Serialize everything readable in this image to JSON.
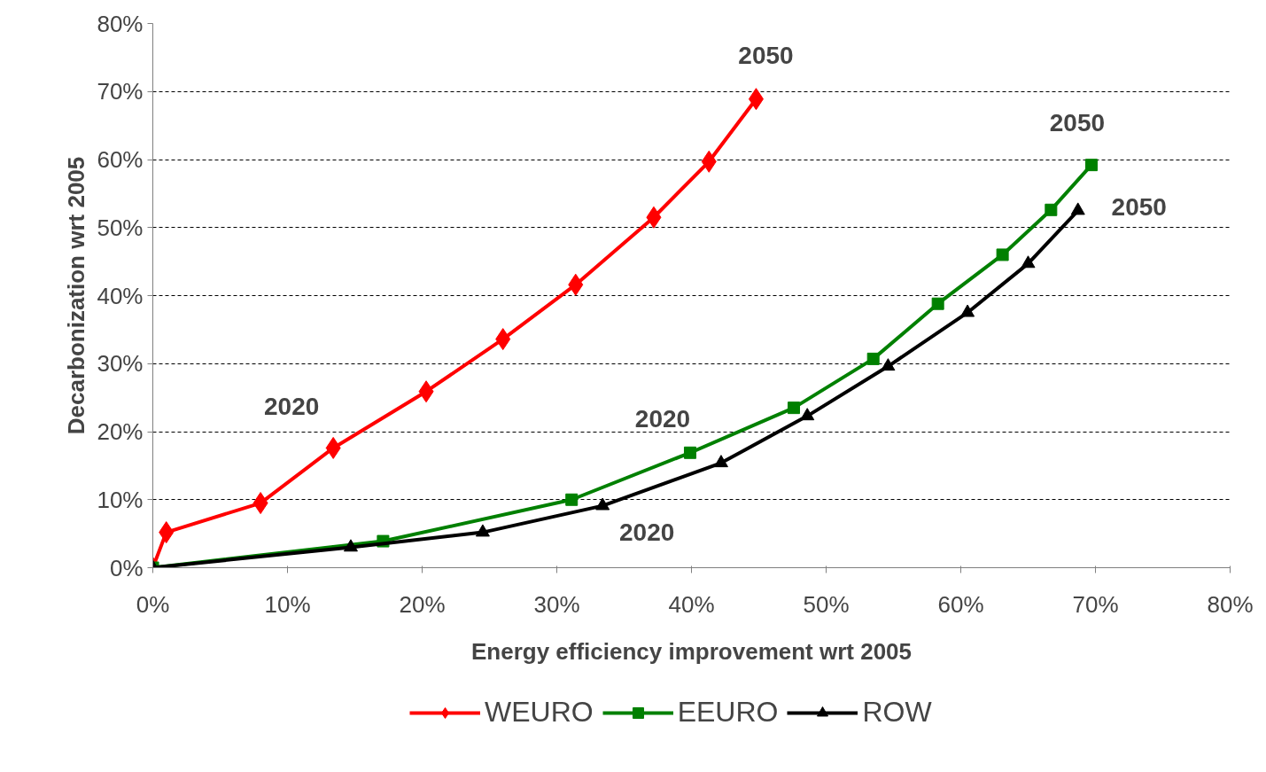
{
  "chart_data": {
    "type": "line",
    "xlabel": "Energy efficiency improvement wrt 2005",
    "ylabel": "Decarbonization wrt 2005",
    "xlim": [
      0,
      80
    ],
    "ylim": [
      0,
      80
    ],
    "xticks": [
      {
        "value": 0,
        "label": "0%"
      },
      {
        "value": 10,
        "label": "10%"
      },
      {
        "value": 20,
        "label": "20%"
      },
      {
        "value": 30,
        "label": "30%"
      },
      {
        "value": 40,
        "label": "40%"
      },
      {
        "value": 50,
        "label": "50%"
      },
      {
        "value": 60,
        "label": "60%"
      },
      {
        "value": 70,
        "label": "70%"
      },
      {
        "value": 80,
        "label": "80%"
      }
    ],
    "yticks": [
      {
        "value": 0,
        "label": "0%"
      },
      {
        "value": 10,
        "label": "10%"
      },
      {
        "value": 20,
        "label": "20%"
      },
      {
        "value": 30,
        "label": "30%"
      },
      {
        "value": 40,
        "label": "40%"
      },
      {
        "value": 50,
        "label": "50%"
      },
      {
        "value": 60,
        "label": "60%"
      },
      {
        "value": 70,
        "label": "70%"
      },
      {
        "value": 80,
        "label": "80%"
      }
    ],
    "grid": "y",
    "legend": "bottom",
    "series": [
      {
        "name": "WEURO",
        "color": "#ff0000",
        "marker": "diamond",
        "x": [
          0,
          1.0,
          8.0,
          13.4,
          20.3,
          26.0,
          31.4,
          37.2,
          41.3,
          44.8
        ],
        "values": [
          0,
          5.2,
          9.5,
          17.6,
          25.9,
          33.6,
          41.6,
          51.5,
          59.7,
          68.9
        ]
      },
      {
        "name": "EEURO",
        "color": "#008000",
        "marker": "square",
        "x": [
          0,
          17.1,
          31.1,
          39.9,
          47.6,
          53.5,
          58.3,
          63.1,
          66.7,
          69.7
        ],
        "values": [
          0,
          3.9,
          10.0,
          16.9,
          23.5,
          30.7,
          38.8,
          46.0,
          52.6,
          59.2
        ]
      },
      {
        "name": "ROW",
        "color": "#000000",
        "marker": "triangle",
        "x": [
          0,
          14.7,
          24.5,
          33.4,
          42.2,
          48.6,
          54.6,
          60.5,
          65.0,
          68.7
        ],
        "values": [
          0,
          3.0,
          5.2,
          9.1,
          15.4,
          22.3,
          29.6,
          37.5,
          44.7,
          52.5
        ]
      }
    ],
    "annotations": [
      {
        "text": "2020",
        "x": 13.4,
        "y": 17.6
      },
      {
        "text": "2050",
        "x": 44.8,
        "y": 68.9
      },
      {
        "text": "2020",
        "x": 39.9,
        "y": 16.9
      },
      {
        "text": "2050",
        "x": 69.7,
        "y": 59.2
      },
      {
        "text": "2020",
        "x": 33.4,
        "y": 9.1
      },
      {
        "text": "2050",
        "x": 68.7,
        "y": 52.5
      }
    ]
  }
}
